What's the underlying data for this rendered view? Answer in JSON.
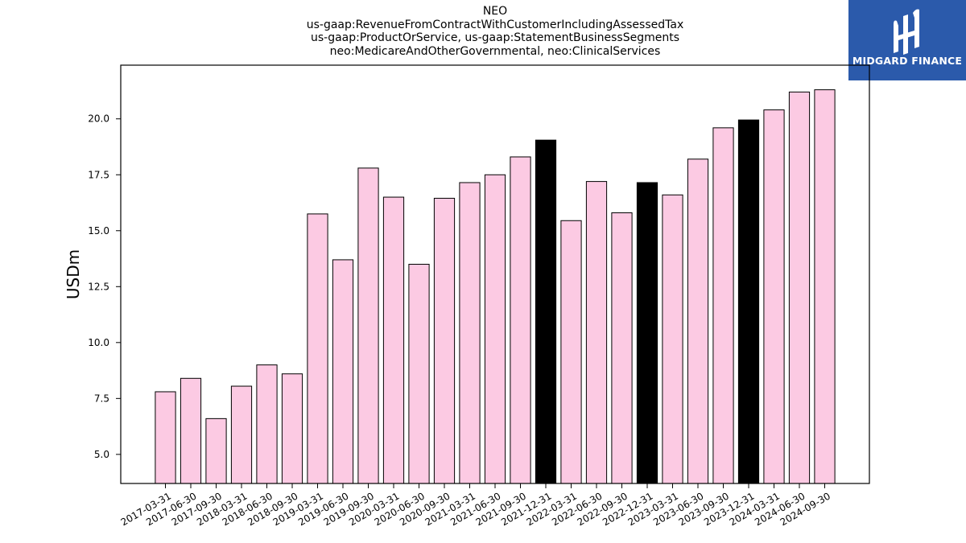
{
  "chart_data": {
    "type": "bar",
    "title_lines": [
      "NEO",
      "us-gaap:RevenueFromContractWithCustomerIncludingAssessedTax",
      "us-gaap:ProductOrService, us-gaap:StatementBusinessSegments",
      "neo:MedicareAndOtherGovernmental, neo:ClinicalServices"
    ],
    "xlabel": "",
    "ylabel": "USDm",
    "ylim": [
      3.7,
      22.4
    ],
    "yticks": [
      "5.0",
      "7.5",
      "10.0",
      "12.5",
      "15.0",
      "17.5",
      "20.0"
    ],
    "grid": false,
    "categories": [
      "2017-03-31",
      "2017-06-30",
      "2017-09-30",
      "2018-03-31",
      "2018-06-30",
      "2018-09-30",
      "2019-03-31",
      "2019-06-30",
      "2019-09-30",
      "2020-03-31",
      "2020-06-30",
      "2020-09-30",
      "2021-03-31",
      "2021-06-30",
      "2021-09-30",
      "2021-12-31",
      "2022-03-31",
      "2022-06-30",
      "2022-09-30",
      "2022-12-31",
      "2023-03-31",
      "2023-06-30",
      "2023-09-30",
      "2023-12-31",
      "2024-03-31",
      "2024-06-30",
      "2024-09-30"
    ],
    "values": [
      7.8,
      8.4,
      6.6,
      8.05,
      9.0,
      8.6,
      15.75,
      13.7,
      17.8,
      16.5,
      13.5,
      16.45,
      17.15,
      17.5,
      18.3,
      19.05,
      15.45,
      17.2,
      15.8,
      17.15,
      16.6,
      18.2,
      19.6,
      19.95,
      20.4,
      21.2,
      21.3
    ],
    "highlighted": [
      false,
      false,
      false,
      false,
      false,
      false,
      false,
      false,
      false,
      false,
      false,
      false,
      false,
      false,
      false,
      true,
      false,
      false,
      false,
      true,
      false,
      false,
      false,
      true,
      false,
      false,
      false
    ],
    "colors": {
      "bar": "#fccae3",
      "highlight": "#000000",
      "edge": "#000000"
    }
  },
  "logo": {
    "text": "MIDGARD FINANCE",
    "background": "#2b5aab"
  }
}
